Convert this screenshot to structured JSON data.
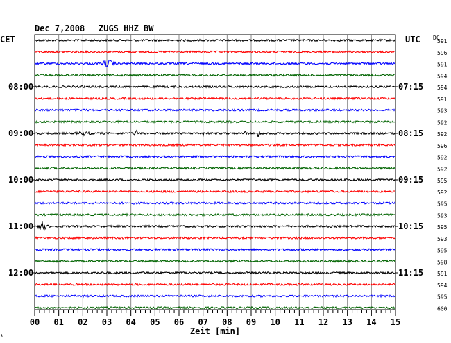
{
  "header": {
    "date": "Dec 7,2008",
    "station": "ZUGS HHZ BW"
  },
  "chart_data": {
    "type": "line",
    "title": "Dec 7,2008   ZUGS HHZ BW",
    "xlabel": "Zeit [min]",
    "xlim": [
      0,
      15
    ],
    "x_ticks": [
      "00",
      "01",
      "02",
      "03",
      "04",
      "05",
      "06",
      "07",
      "08",
      "09",
      "10",
      "11",
      "12",
      "13",
      "14",
      "15"
    ],
    "left_axis_label": "CET",
    "right_axis_label": "UTC",
    "dc_label": "DC",
    "left_time_labels": [
      {
        "row": 4,
        "label": "08:00"
      },
      {
        "row": 8,
        "label": "09:00"
      },
      {
        "row": 12,
        "label": "10:00"
      },
      {
        "row": 16,
        "label": "11:00"
      },
      {
        "row": 20,
        "label": "12:00"
      }
    ],
    "right_time_labels": [
      {
        "row": 4,
        "label": "07:15"
      },
      {
        "row": 8,
        "label": "08:15"
      },
      {
        "row": 12,
        "label": "09:15"
      },
      {
        "row": 16,
        "label": "10:15"
      },
      {
        "row": 20,
        "label": "11:15"
      }
    ],
    "dc_offsets": [
      "591",
      "596",
      "591",
      "594",
      "594",
      "591",
      "593",
      "592",
      "592",
      "596",
      "592",
      "592",
      "595",
      "592",
      "595",
      "593",
      "595",
      "593",
      "595",
      "598",
      "591",
      "594",
      "595",
      "600"
    ],
    "trace_colors": [
      "#000000",
      "#ff0000",
      "#0000ff",
      "#006400"
    ],
    "footer_mark": "⅟"
  }
}
